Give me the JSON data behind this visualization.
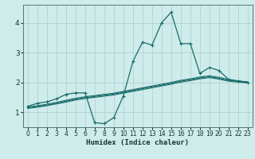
{
  "xlabel": "Humidex (Indice chaleur)",
  "background_color": "#ceecea",
  "grid_color": "#aed4d2",
  "line_color": "#1a6b6b",
  "xlim": [
    -0.5,
    23.5
  ],
  "ylim": [
    0.5,
    4.6
  ],
  "yticks": [
    1,
    2,
    3,
    4
  ],
  "xticks": [
    0,
    1,
    2,
    3,
    4,
    5,
    6,
    7,
    8,
    9,
    10,
    11,
    12,
    13,
    14,
    15,
    16,
    17,
    18,
    19,
    20,
    21,
    22,
    23
  ],
  "main_x": [
    0,
    1,
    2,
    3,
    4,
    5,
    6,
    7,
    8,
    9,
    10,
    11,
    12,
    13,
    14,
    15,
    16,
    17,
    18,
    19,
    20,
    21,
    22,
    23
  ],
  "main_y": [
    1.2,
    1.3,
    1.35,
    1.45,
    1.6,
    1.65,
    1.65,
    0.65,
    0.62,
    0.82,
    1.55,
    2.7,
    3.35,
    3.25,
    4.0,
    4.35,
    3.3,
    3.3,
    2.3,
    2.5,
    2.4,
    2.1,
    2.05,
    2.0
  ],
  "line2_x": [
    0,
    1,
    2,
    3,
    4,
    5,
    6,
    7,
    8,
    9,
    10,
    11,
    12,
    13,
    14,
    15,
    16,
    17,
    18,
    19,
    20,
    21,
    22,
    23
  ],
  "line2_y": [
    1.18,
    1.22,
    1.27,
    1.33,
    1.4,
    1.47,
    1.52,
    1.56,
    1.6,
    1.64,
    1.7,
    1.76,
    1.82,
    1.88,
    1.94,
    2.0,
    2.07,
    2.12,
    2.18,
    2.22,
    2.17,
    2.1,
    2.05,
    2.02
  ],
  "line3_x": [
    0,
    1,
    2,
    3,
    4,
    5,
    6,
    7,
    8,
    9,
    10,
    11,
    12,
    13,
    14,
    15,
    16,
    17,
    18,
    19,
    20,
    21,
    22,
    23
  ],
  "line3_y": [
    1.15,
    1.19,
    1.24,
    1.3,
    1.37,
    1.44,
    1.49,
    1.53,
    1.57,
    1.61,
    1.67,
    1.73,
    1.79,
    1.85,
    1.91,
    1.97,
    2.04,
    2.09,
    2.15,
    2.19,
    2.14,
    2.07,
    2.03,
    2.0
  ],
  "line4_x": [
    0,
    1,
    2,
    3,
    4,
    5,
    6,
    7,
    8,
    9,
    10,
    11,
    12,
    13,
    14,
    15,
    16,
    17,
    18,
    19,
    20,
    21,
    22,
    23
  ],
  "line4_y": [
    1.13,
    1.17,
    1.22,
    1.28,
    1.34,
    1.41,
    1.46,
    1.5,
    1.54,
    1.58,
    1.64,
    1.7,
    1.76,
    1.82,
    1.88,
    1.94,
    2.01,
    2.06,
    2.12,
    2.16,
    2.11,
    2.04,
    2.01,
    1.98
  ]
}
